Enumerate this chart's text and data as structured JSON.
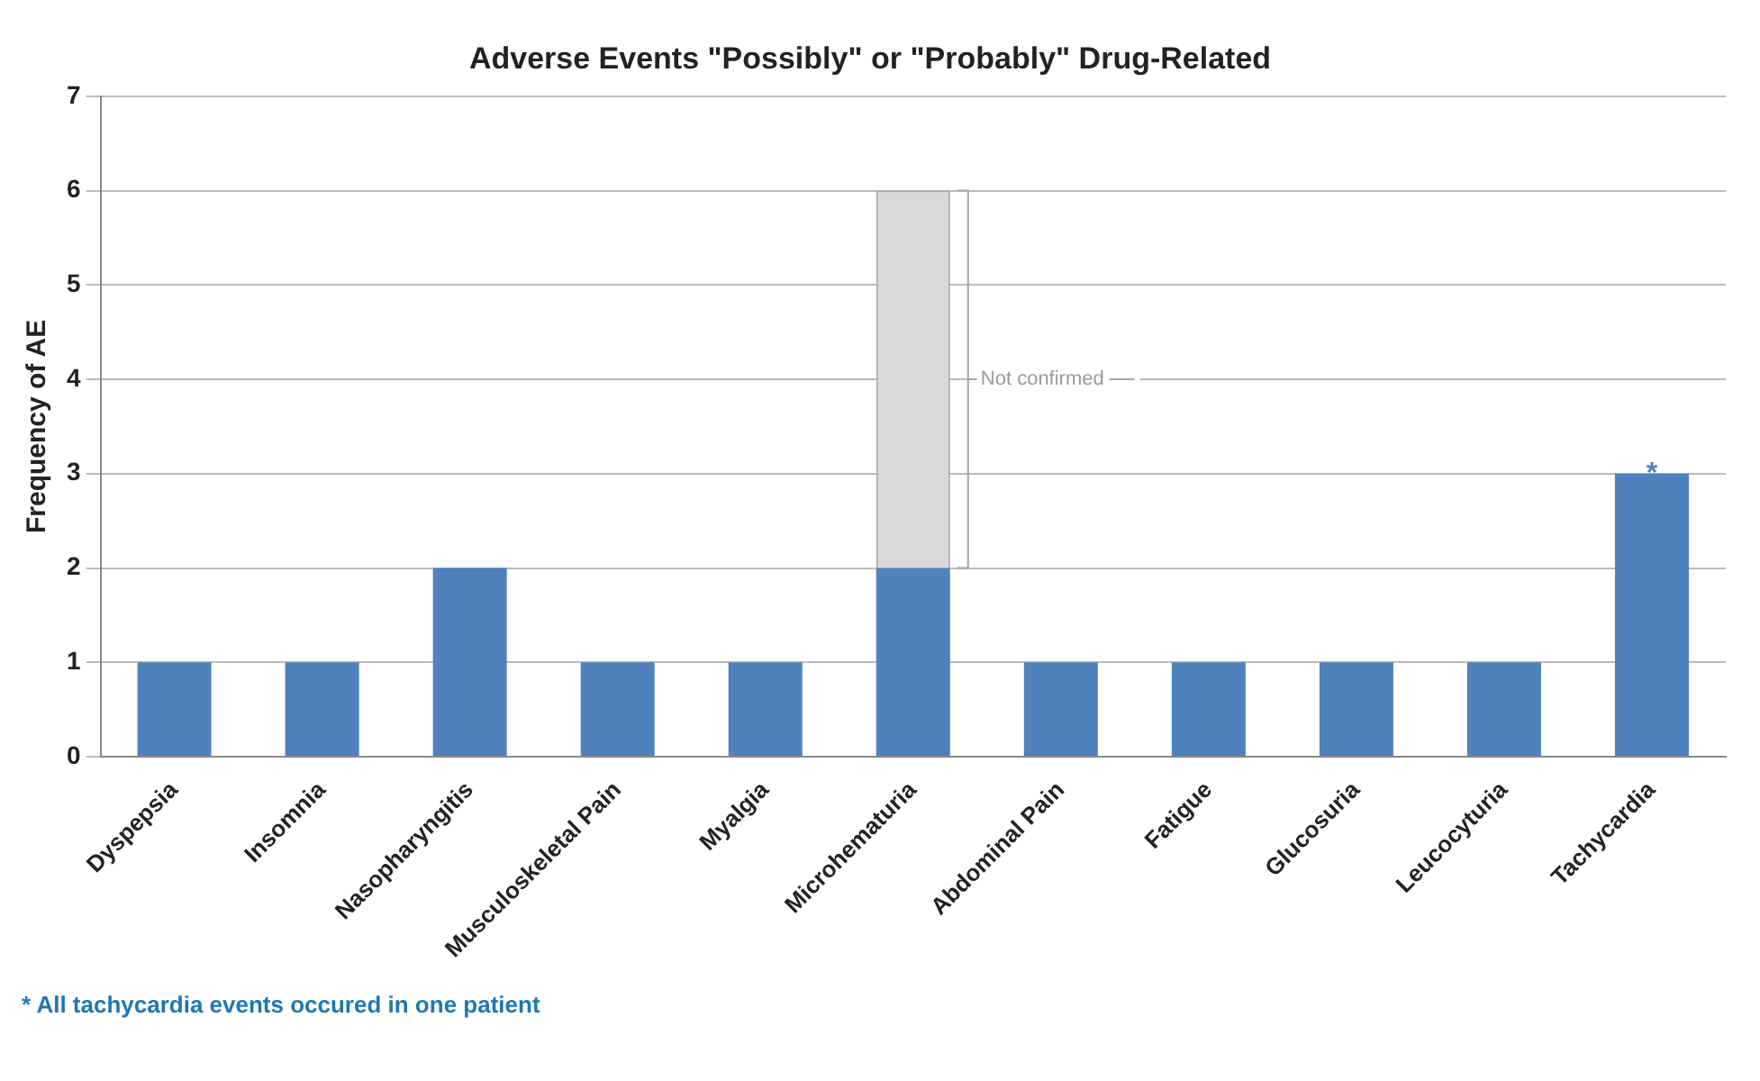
{
  "chart_data": {
    "type": "bar",
    "title": "Adverse Events \"Possibly\" or \"Probably\" Drug-Related",
    "ylabel": "Frequency of AE",
    "categories": [
      "Dyspepsia",
      "Insomnia",
      "Nasopharyngitis",
      "Musculoskeletal Pain",
      "Myalgia",
      "Microhematuria",
      "Abdominal Pain",
      "Fatigue",
      "Glucosuria",
      "Leucocyturia",
      "Tachycardia"
    ],
    "stacked": true,
    "series": [
      {
        "color": "#4f81bd",
        "values": [
          1,
          1,
          2,
          1,
          1,
          2,
          1,
          1,
          1,
          1,
          3
        ]
      },
      {
        "color": "#d9d9d9",
        "values": [
          null,
          null,
          null,
          null,
          null,
          4,
          null,
          null,
          null,
          null,
          null
        ]
      }
    ],
    "ylim": [
      0,
      7
    ],
    "yticks": [
      0,
      1,
      2,
      3,
      4,
      5,
      6,
      7
    ],
    "grid": "y",
    "legend": false,
    "annotations": [
      "Not confirmed",
      {
        "text": "*",
        "x": "Tachycardia",
        "y": 3
      },
      "* All tachycardia events occured in one patient"
    ]
  }
}
